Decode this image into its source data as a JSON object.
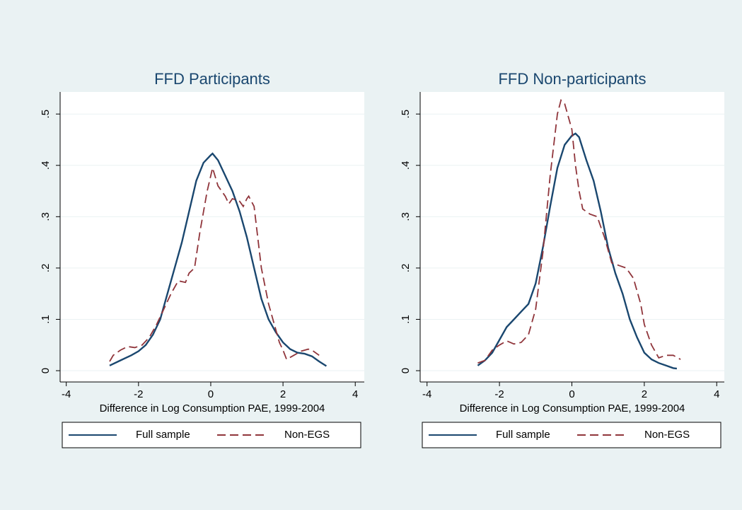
{
  "chart_data": [
    {
      "type": "line",
      "title": "FFD Participants",
      "x_label": "Difference in Log Consumption PAE, 1999-2004",
      "xlim": [
        -4.17,
        4.25
      ],
      "ylim": [
        -0.022,
        0.543
      ],
      "xticks": [
        -4,
        -2,
        0,
        2,
        4
      ],
      "yticks": [
        0,
        {
          "value": 0.1,
          "label": ".1"
        },
        {
          "value": 0.2,
          "label": ".2"
        },
        {
          "value": 0.3,
          "label": ".3"
        },
        {
          "value": 0.4,
          "label": ".4"
        },
        {
          "value": 0.5,
          "label": ".5"
        }
      ],
      "grid": true,
      "series": [
        {
          "name": "Full sample",
          "color": "#1a476f",
          "dash": "solid",
          "x": [
            -2.8,
            -2.5,
            -2.2,
            -2,
            -1.8,
            -1.6,
            -1.4,
            -1.2,
            -1,
            -0.8,
            -0.6,
            -0.4,
            -0.2,
            0,
            0.05,
            0.2,
            0.4,
            0.6,
            0.8,
            1,
            1.2,
            1.4,
            1.6,
            1.8,
            2,
            2.2,
            2.4,
            2.6,
            2.8,
            3,
            3.2
          ],
          "values": [
            0.01,
            0.02,
            0.03,
            0.038,
            0.05,
            0.07,
            0.1,
            0.15,
            0.2,
            0.25,
            0.31,
            0.37,
            0.405,
            0.42,
            0.423,
            0.41,
            0.38,
            0.35,
            0.31,
            0.26,
            0.2,
            0.14,
            0.1,
            0.075,
            0.055,
            0.042,
            0.035,
            0.033,
            0.028,
            0.018,
            0.009
          ]
        },
        {
          "name": "Non-EGS",
          "color": "#90353b",
          "dash": "dashed",
          "x": [
            -2.8,
            -2.7,
            -2.5,
            -2.3,
            -2.1,
            -1.9,
            -1.7,
            -1.5,
            -1.3,
            -1.1,
            -0.9,
            -0.7,
            -0.6,
            -0.45,
            -0.3,
            -0.1,
            0,
            0.05,
            0.2,
            0.4,
            0.5,
            0.6,
            0.8,
            0.9,
            1,
            1.05,
            1.2,
            1.4,
            1.6,
            1.8,
            1.9,
            2,
            2.1,
            2.3,
            2.5,
            2.7,
            2.8,
            3
          ],
          "values": [
            0.018,
            0.03,
            0.04,
            0.047,
            0.045,
            0.05,
            0.065,
            0.09,
            0.12,
            0.15,
            0.175,
            0.172,
            0.19,
            0.2,
            0.27,
            0.35,
            0.38,
            0.395,
            0.36,
            0.34,
            0.325,
            0.335,
            0.33,
            0.32,
            0.335,
            0.34,
            0.32,
            0.2,
            0.13,
            0.08,
            0.055,
            0.04,
            0.022,
            0.03,
            0.038,
            0.042,
            0.04,
            0.03
          ]
        }
      ]
    },
    {
      "type": "line",
      "title": "FFD Non-participants",
      "x_label": "Difference in Log Consumption PAE, 1999-2004",
      "xlim": [
        -4.19,
        4.21
      ],
      "ylim": [
        -0.022,
        0.543
      ],
      "xticks": [
        -4,
        -2,
        0,
        2,
        4
      ],
      "yticks": [
        0,
        {
          "value": 0.1,
          "label": ".1"
        },
        {
          "value": 0.2,
          "label": ".2"
        },
        {
          "value": 0.3,
          "label": ".3"
        },
        {
          "value": 0.4,
          "label": ".4"
        },
        {
          "value": 0.5,
          "label": ".5"
        }
      ],
      "grid": true,
      "series": [
        {
          "name": "Full sample",
          "color": "#1a476f",
          "dash": "solid",
          "x": [
            -2.6,
            -2.4,
            -2.2,
            -2,
            -1.8,
            -1.6,
            -1.4,
            -1.2,
            -1,
            -0.8,
            -0.6,
            -0.4,
            -0.2,
            0,
            0.1,
            0.2,
            0.4,
            0.6,
            0.8,
            1,
            1.2,
            1.4,
            1.6,
            1.8,
            2,
            2.2,
            2.4,
            2.6,
            2.8,
            2.9
          ],
          "values": [
            0.01,
            0.02,
            0.035,
            0.06,
            0.085,
            0.1,
            0.115,
            0.13,
            0.17,
            0.24,
            0.32,
            0.395,
            0.44,
            0.458,
            0.462,
            0.455,
            0.41,
            0.37,
            0.31,
            0.24,
            0.19,
            0.15,
            0.1,
            0.065,
            0.035,
            0.022,
            0.015,
            0.01,
            0.005,
            0.004
          ]
        },
        {
          "name": "Non-EGS",
          "color": "#90353b",
          "dash": "dashed",
          "x": [
            -2.6,
            -2.4,
            -2.2,
            -2,
            -1.8,
            -1.6,
            -1.4,
            -1.2,
            -1,
            -0.8,
            -0.6,
            -0.4,
            -0.3,
            -0.2,
            0,
            0.1,
            0.2,
            0.3,
            0.5,
            0.7,
            0.9,
            1.1,
            1.3,
            1.5,
            1.7,
            1.9,
            2,
            2.2,
            2.4,
            2.6,
            2.8,
            3
          ],
          "values": [
            0.015,
            0.02,
            0.04,
            0.05,
            0.058,
            0.052,
            0.055,
            0.07,
            0.12,
            0.23,
            0.38,
            0.5,
            0.527,
            0.52,
            0.47,
            0.4,
            0.35,
            0.315,
            0.305,
            0.3,
            0.26,
            0.21,
            0.205,
            0.2,
            0.18,
            0.13,
            0.09,
            0.05,
            0.025,
            0.03,
            0.03,
            0.022
          ]
        }
      ]
    }
  ]
}
